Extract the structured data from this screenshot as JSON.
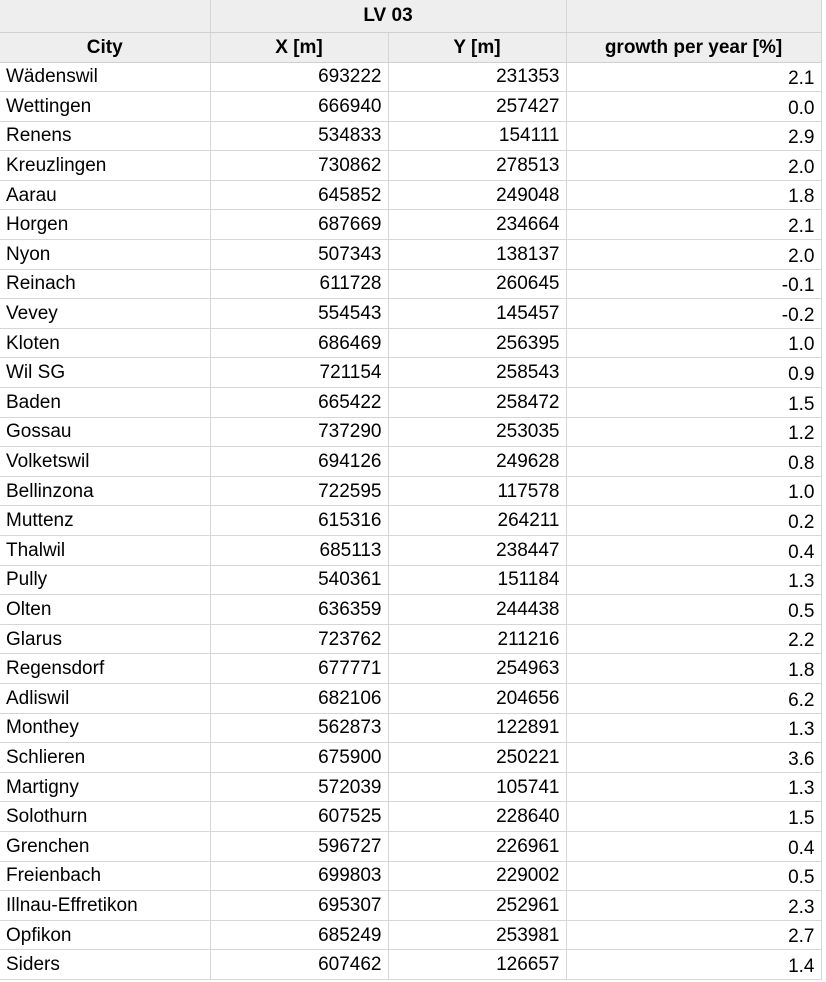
{
  "header": {
    "group_label": "LV 03",
    "columns": [
      "City",
      "X [m]",
      "Y [m]",
      "growth per year [%]"
    ]
  },
  "rows": [
    {
      "city": "Wädenswil",
      "x": "693222",
      "y": "231353",
      "growth": "2.1"
    },
    {
      "city": "Wettingen",
      "x": "666940",
      "y": "257427",
      "growth": "0.0"
    },
    {
      "city": "Renens",
      "x": "534833",
      "y": "154111",
      "growth": "2.9"
    },
    {
      "city": "Kreuzlingen",
      "x": "730862",
      "y": "278513",
      "growth": "2.0"
    },
    {
      "city": "Aarau",
      "x": "645852",
      "y": "249048",
      "growth": "1.8"
    },
    {
      "city": "Horgen",
      "x": "687669",
      "y": "234664",
      "growth": "2.1"
    },
    {
      "city": "Nyon",
      "x": "507343",
      "y": "138137",
      "growth": "2.0"
    },
    {
      "city": "Reinach",
      "x": "611728",
      "y": "260645",
      "growth": "-0.1"
    },
    {
      "city": "Vevey",
      "x": "554543",
      "y": "145457",
      "growth": "-0.2"
    },
    {
      "city": "Kloten",
      "x": "686469",
      "y": "256395",
      "growth": "1.0"
    },
    {
      "city": "Wil SG",
      "x": "721154",
      "y": "258543",
      "growth": "0.9"
    },
    {
      "city": "Baden",
      "x": "665422",
      "y": "258472",
      "growth": "1.5"
    },
    {
      "city": "Gossau",
      "x": "737290",
      "y": "253035",
      "growth": "1.2"
    },
    {
      "city": "Volketswil",
      "x": "694126",
      "y": "249628",
      "growth": "0.8"
    },
    {
      "city": "Bellinzona",
      "x": "722595",
      "y": "117578",
      "growth": "1.0"
    },
    {
      "city": "Muttenz",
      "x": "615316",
      "y": "264211",
      "growth": "0.2"
    },
    {
      "city": "Thalwil",
      "x": "685113",
      "y": "238447",
      "growth": "0.4"
    },
    {
      "city": "Pully",
      "x": "540361",
      "y": "151184",
      "growth": "1.3"
    },
    {
      "city": "Olten",
      "x": "636359",
      "y": "244438",
      "growth": "0.5"
    },
    {
      "city": "Glarus",
      "x": "723762",
      "y": "211216",
      "growth": "2.2"
    },
    {
      "city": "Regensdorf",
      "x": "677771",
      "y": "254963",
      "growth": "1.8"
    },
    {
      "city": "Adliswil",
      "x": "682106",
      "y": "204656",
      "growth": "6.2"
    },
    {
      "city": "Monthey",
      "x": "562873",
      "y": "122891",
      "growth": "1.3"
    },
    {
      "city": "Schlieren",
      "x": "675900",
      "y": "250221",
      "growth": "3.6"
    },
    {
      "city": "Martigny",
      "x": "572039",
      "y": "105741",
      "growth": "1.3"
    },
    {
      "city": "Solothurn",
      "x": "607525",
      "y": "228640",
      "growth": "1.5"
    },
    {
      "city": "Grenchen",
      "x": "596727",
      "y": "226961",
      "growth": "0.4"
    },
    {
      "city": "Freienbach",
      "x": "699803",
      "y": "229002",
      "growth": "0.5"
    },
    {
      "city": "Illnau-Effretikon",
      "x": "695307",
      "y": "252961",
      "growth": "2.3"
    },
    {
      "city": "Opfikon",
      "x": "685249",
      "y": "253981",
      "growth": "2.7"
    },
    {
      "city": "Siders",
      "x": "607462",
      "y": "126657",
      "growth": "1.4"
    }
  ],
  "colors": {
    "header_background": "#eeeeee",
    "grid_line": "#d6d6d6"
  }
}
